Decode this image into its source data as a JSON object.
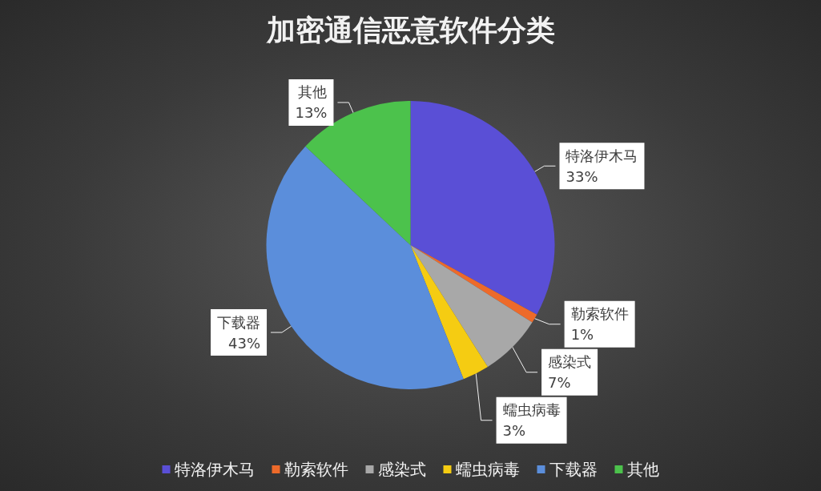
{
  "chart_data": {
    "type": "pie",
    "title": "加密通信恶意软件分类",
    "categories": [
      "特洛伊木马",
      "勒索软件",
      "感染式",
      "蠕虫病毒",
      "下载器",
      "其他"
    ],
    "values": [
      33,
      1,
      7,
      3,
      43,
      13
    ],
    "value_labels": [
      "33%",
      "1%",
      "7%",
      "3%",
      "43%",
      "13%"
    ],
    "colors": [
      "#5a4fd6",
      "#ed6a2a",
      "#a8a8a8",
      "#f5cc12",
      "#5b8edb",
      "#4cc24c"
    ],
    "legend": "bottom"
  }
}
